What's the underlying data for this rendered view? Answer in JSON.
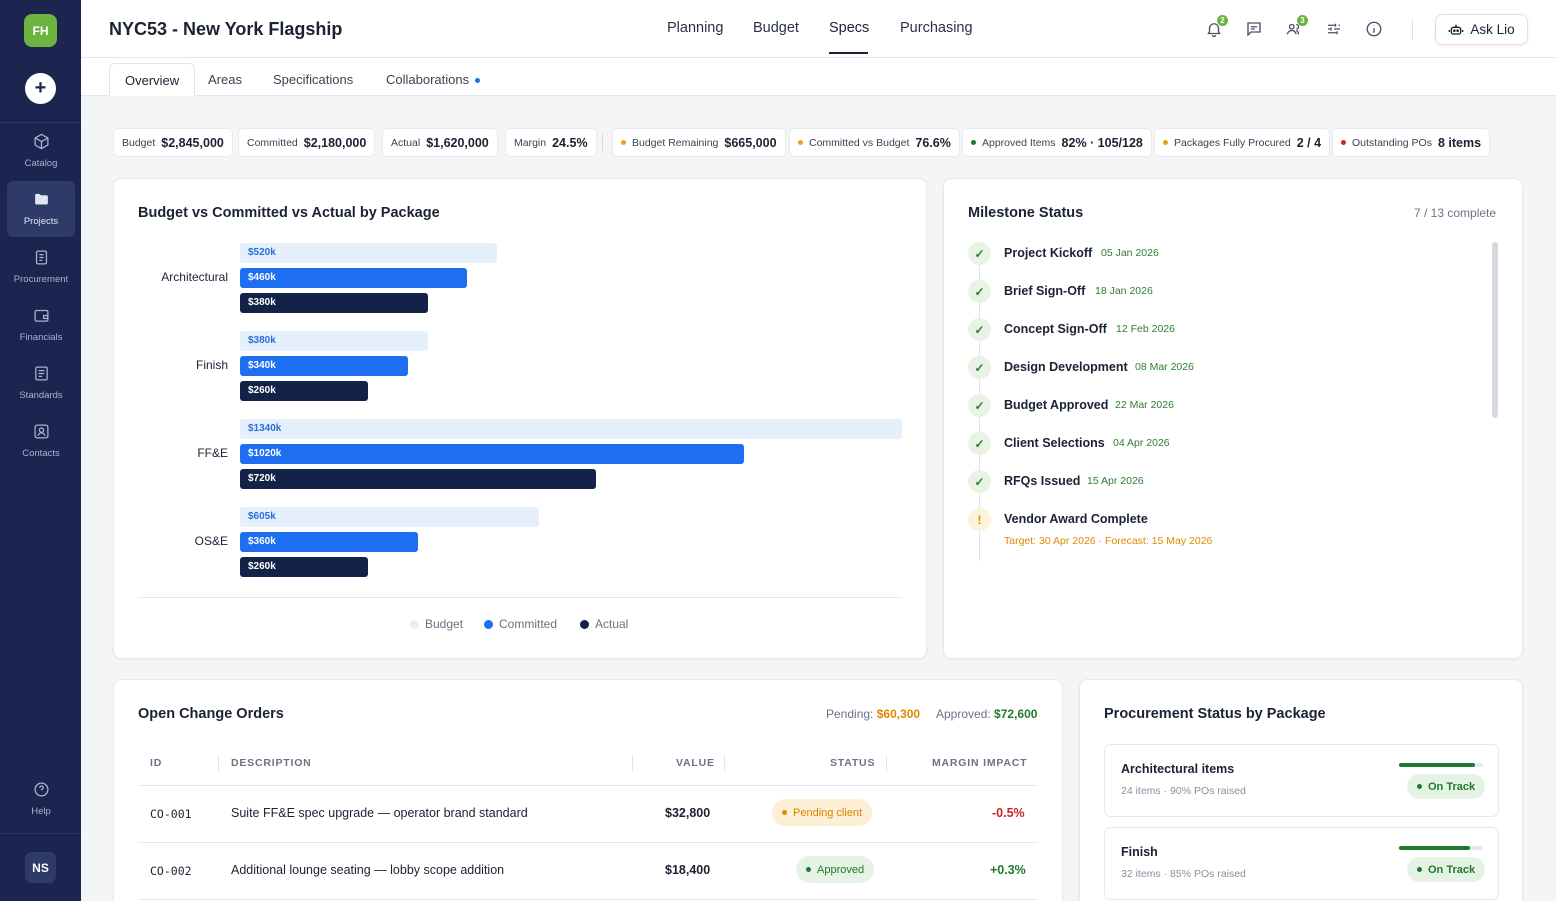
{
  "sidebar": {
    "logo": "FH",
    "add_label": "+",
    "items": [
      {
        "label": "Catalog",
        "icon": "cube-icon"
      },
      {
        "label": "Projects",
        "icon": "folder-icon"
      },
      {
        "label": "Procurement",
        "icon": "clipboard-icon"
      },
      {
        "label": "Financials",
        "icon": "wallet-icon"
      },
      {
        "label": "Standards",
        "icon": "document-icon"
      },
      {
        "label": "Contacts",
        "icon": "contact-icon"
      }
    ],
    "help": "Help",
    "avatar": "NS"
  },
  "header": {
    "title": "NYC53 - New York Flagship",
    "tabs": [
      {
        "label": "Planning"
      },
      {
        "label": "Budget"
      },
      {
        "label": "Specs",
        "active": true
      },
      {
        "label": "Purchasing"
      }
    ],
    "notifications_count": "2",
    "people_count": "3",
    "ask_label": "Ask Lio"
  },
  "subtabs": [
    {
      "label": "Overview",
      "active": true
    },
    {
      "label": "Areas"
    },
    {
      "label": "Specifications"
    },
    {
      "label": "Collaborations",
      "dot": true
    }
  ],
  "kpis": [
    {
      "label": "Budget",
      "value": "$2,845,000"
    },
    {
      "label": "Committed",
      "value": "$2,180,000"
    },
    {
      "label": "Actual",
      "value": "$1,620,000"
    },
    {
      "label": "Margin",
      "value": "24.5%"
    },
    {
      "label": "Budget Remaining",
      "value": "$665,000",
      "dot": "#e6a019"
    },
    {
      "label": "Committed vs Budget",
      "value": "76.6%",
      "dot": "#e6a019"
    },
    {
      "label": "Approved Items",
      "value": "82% · 105/128",
      "dot": "#1f7a2b"
    },
    {
      "label": "Packages Fully Procured",
      "value": "2 / 4",
      "dot": "#e6a019"
    },
    {
      "label": "Outstanding POs",
      "value": "8 items",
      "dot": "#c62828"
    }
  ],
  "chart": {
    "title": "Budget vs Committed vs Actual by Package",
    "legend": [
      "Budget",
      "Committed",
      "Actual"
    ],
    "colors": {
      "budget": "#e6f0fd",
      "committed": "#1d6ef0",
      "actual": "#132248"
    }
  },
  "chart_data": {
    "type": "bar",
    "orientation": "horizontal",
    "title": "Budget vs Committed vs Actual by Package",
    "categories": [
      "Architectural",
      "Finish",
      "FF&E",
      "OS&E"
    ],
    "series": [
      {
        "name": "Budget",
        "values": [
          520,
          380,
          1340,
          605
        ],
        "labels": [
          "$520k",
          "$380k",
          "$1340k",
          "$605k"
        ]
      },
      {
        "name": "Committed",
        "values": [
          460,
          340,
          1020,
          360
        ],
        "labels": [
          "$460k",
          "$340k",
          "$1020k",
          "$360k"
        ]
      },
      {
        "name": "Actual",
        "values": [
          380,
          260,
          720,
          260
        ],
        "labels": [
          "$380k",
          "$260k",
          "$720k",
          "$260k"
        ]
      }
    ],
    "units": "k$",
    "legend_position": "bottom",
    "xlim": [
      0,
      1340
    ]
  },
  "milestones": {
    "title": "Milestone Status",
    "summary": "7 / 13 complete",
    "items": [
      {
        "name": "Project Kickoff",
        "date": "05 Jan 2026",
        "status": "done",
        "mark": "✓"
      },
      {
        "name": "Brief Sign-Off",
        "date": "18 Jan 2026",
        "status": "done",
        "mark": "✓"
      },
      {
        "name": "Concept Sign-Off",
        "date": "12 Feb 2026",
        "status": "done",
        "mark": "✓"
      },
      {
        "name": "Design Development",
        "date": "08 Mar 2026",
        "status": "done",
        "mark": "✓"
      },
      {
        "name": "Budget Approved",
        "date": "22 Mar 2026",
        "status": "done",
        "mark": "✓"
      },
      {
        "name": "Client Selections",
        "date": "04 Apr 2026",
        "status": "done",
        "mark": "✓"
      },
      {
        "name": "RFQs Issued",
        "date": "15 Apr 2026",
        "status": "done",
        "mark": "✓"
      },
      {
        "name": "Vendor Award Complete",
        "date": "",
        "target": "Target: 30 Apr 2026 · Forecast: 15 May 2026",
        "status": "warn",
        "mark": "!"
      }
    ]
  },
  "change_orders": {
    "title": "Open Change Orders",
    "pending_label": "Pending:",
    "pending_value": "$60,300",
    "approved_label": "Approved:",
    "approved_value": "$72,600",
    "columns": [
      "ID",
      "DESCRIPTION",
      "VALUE",
      "STATUS",
      "MARGIN IMPACT"
    ],
    "rows": [
      {
        "id": "CO-001",
        "description": "Suite FF&E spec upgrade — operator brand standard",
        "value": "$32,800",
        "status": "Pending client",
        "status_type": "pending",
        "impact": "-0.5%",
        "impact_color": "#c62828"
      },
      {
        "id": "CO-002",
        "description": "Additional lounge seating — lobby scope addition",
        "value": "$18,400",
        "status": "Approved",
        "status_type": "approved",
        "impact": "+0.3%",
        "impact_color": "#1f7a2b"
      }
    ]
  },
  "procurement": {
    "title": "Procurement Status by Package",
    "items": [
      {
        "name": "Architectural items",
        "sub": "24 items · 90% POs raised",
        "progress": 0.9,
        "status": "On Track"
      },
      {
        "name": "Finish",
        "sub": "32 items · 85% POs raised",
        "progress": 0.85,
        "status": "On Track"
      }
    ]
  }
}
